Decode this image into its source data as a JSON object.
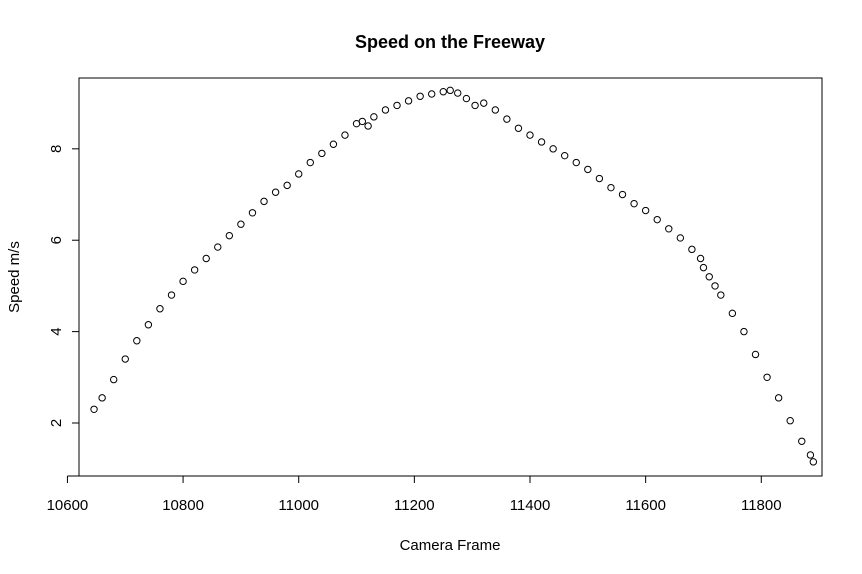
{
  "chart_data": {
    "type": "scatter",
    "title": "Speed on the Freeway",
    "xlabel": "Camera Frame",
    "ylabel": "Speed m/s",
    "xlim": [
      10620,
      11905
    ],
    "ylim": [
      0.84,
      9.55
    ],
    "xticks": [
      10600,
      10800,
      11000,
      11200,
      11400,
      11600,
      11800
    ],
    "yticks": [
      2,
      4,
      6,
      8
    ],
    "grid": false,
    "marker": "open-circle",
    "color": "#000000",
    "series": [
      {
        "x": [
          10646,
          10660,
          10680,
          10700,
          10720,
          10740,
          10760,
          10780,
          10800,
          10820,
          10840,
          10860,
          10880,
          10900,
          10920,
          10940,
          10960,
          10980,
          11000,
          11020,
          11040,
          11060,
          11080,
          11100,
          11110,
          11120,
          11130,
          11150,
          11170,
          11190,
          11210,
          11230,
          11250,
          11262,
          11275,
          11290,
          11305,
          11320,
          11340,
          11360,
          11380,
          11400,
          11420,
          11440,
          11460,
          11480,
          11500,
          11520,
          11540,
          11560,
          11580,
          11600,
          11620,
          11640,
          11660,
          11680,
          11695,
          11700,
          11710,
          11720,
          11730,
          11750,
          11770,
          11790,
          11810,
          11830,
          11850,
          11870,
          11885,
          11890
        ],
        "y": [
          2.3,
          2.55,
          2.95,
          3.4,
          3.8,
          4.15,
          4.5,
          4.8,
          5.1,
          5.35,
          5.6,
          5.85,
          6.1,
          6.35,
          6.6,
          6.85,
          7.05,
          7.2,
          7.45,
          7.7,
          7.9,
          8.1,
          8.3,
          8.55,
          8.6,
          8.5,
          8.7,
          8.85,
          8.95,
          9.05,
          9.15,
          9.2,
          9.25,
          9.28,
          9.22,
          9.1,
          8.95,
          9.0,
          8.85,
          8.65,
          8.45,
          8.3,
          8.15,
          8.0,
          7.85,
          7.7,
          7.55,
          7.35,
          7.15,
          7.0,
          6.8,
          6.65,
          6.45,
          6.25,
          6.05,
          5.8,
          5.6,
          5.4,
          5.2,
          5.0,
          4.8,
          4.4,
          4.0,
          3.5,
          3.0,
          2.55,
          2.05,
          1.6,
          1.3,
          1.15
        ]
      }
    ]
  }
}
